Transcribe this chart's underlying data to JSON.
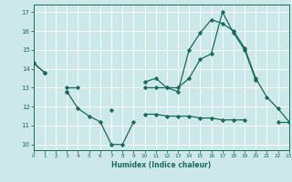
{
  "xlabel": "Humidex (Indice chaleur)",
  "x": [
    0,
    1,
    2,
    3,
    4,
    5,
    6,
    7,
    8,
    9,
    10,
    11,
    12,
    13,
    14,
    15,
    16,
    17,
    18,
    19,
    20,
    21,
    22,
    23
  ],
  "line1": [
    14.3,
    13.8,
    null,
    12.8,
    11.9,
    11.5,
    11.2,
    10.0,
    10.0,
    11.2,
    null,
    null,
    null,
    null,
    null,
    null,
    null,
    null,
    null,
    null,
    null,
    null,
    null,
    null
  ],
  "line2": [
    14.3,
    13.8,
    null,
    12.8,
    null,
    null,
    null,
    null,
    null,
    null,
    13.3,
    13.5,
    13.0,
    12.8,
    15.0,
    15.9,
    16.6,
    16.4,
    16.0,
    15.1,
    13.5,
    12.5,
    11.9,
    11.2
  ],
  "line3": [
    null,
    null,
    null,
    13.0,
    13.0,
    null,
    null,
    11.8,
    null,
    null,
    13.0,
    13.0,
    13.0,
    13.0,
    13.5,
    14.5,
    14.8,
    17.0,
    15.9,
    15.0,
    13.4,
    null,
    null,
    null
  ],
  "line4": [
    null,
    null,
    null,
    null,
    null,
    null,
    null,
    null,
    null,
    null,
    11.6,
    11.6,
    11.5,
    11.5,
    11.5,
    11.4,
    11.4,
    11.3,
    11.3,
    11.3,
    null,
    null,
    11.2,
    11.2
  ],
  "color": "#1a6b5a",
  "bg_color": "#cce8e8",
  "grid_color": "#ffffff",
  "xlim": [
    0,
    23
  ],
  "ylim": [
    9.7,
    17.4
  ],
  "yticks": [
    10,
    11,
    12,
    13,
    14,
    15,
    16,
    17
  ],
  "xticks": [
    0,
    1,
    2,
    3,
    4,
    5,
    6,
    7,
    8,
    9,
    10,
    11,
    12,
    13,
    14,
    15,
    16,
    17,
    18,
    19,
    20,
    21,
    22,
    23
  ]
}
